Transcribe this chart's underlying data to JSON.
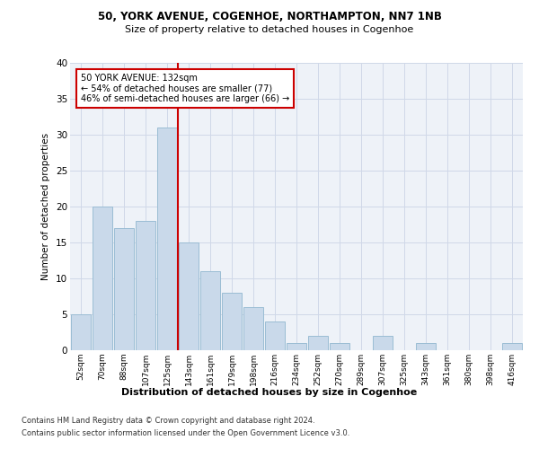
{
  "title_line1": "50, YORK AVENUE, COGENHOE, NORTHAMPTON, NN7 1NB",
  "title_line2": "Size of property relative to detached houses in Cogenhoe",
  "xlabel": "Distribution of detached houses by size in Cogenhoe",
  "ylabel": "Number of detached properties",
  "categories": [
    "52sqm",
    "70sqm",
    "88sqm",
    "107sqm",
    "125sqm",
    "143sqm",
    "161sqm",
    "179sqm",
    "198sqm",
    "216sqm",
    "234sqm",
    "252sqm",
    "270sqm",
    "289sqm",
    "307sqm",
    "325sqm",
    "343sqm",
    "361sqm",
    "380sqm",
    "398sqm",
    "416sqm"
  ],
  "values": [
    5,
    20,
    17,
    18,
    31,
    15,
    11,
    8,
    6,
    4,
    1,
    2,
    1,
    0,
    2,
    0,
    1,
    0,
    0,
    0,
    1
  ],
  "bar_color": "#c9d9ea",
  "bar_edge_color": "#9bbdd4",
  "grid_color": "#d0d8e8",
  "background_color": "#eef2f8",
  "vline_color": "#cc0000",
  "vline_x_index": 4.5,
  "annotation_text": "50 YORK AVENUE: 132sqm\n← 54% of detached houses are smaller (77)\n46% of semi-detached houses are larger (66) →",
  "annotation_box_color": "#ffffff",
  "annotation_box_edge": "#cc0000",
  "ylim": [
    0,
    40
  ],
  "yticks": [
    0,
    5,
    10,
    15,
    20,
    25,
    30,
    35,
    40
  ],
  "footer_line1": "Contains HM Land Registry data © Crown copyright and database right 2024.",
  "footer_line2": "Contains public sector information licensed under the Open Government Licence v3.0."
}
